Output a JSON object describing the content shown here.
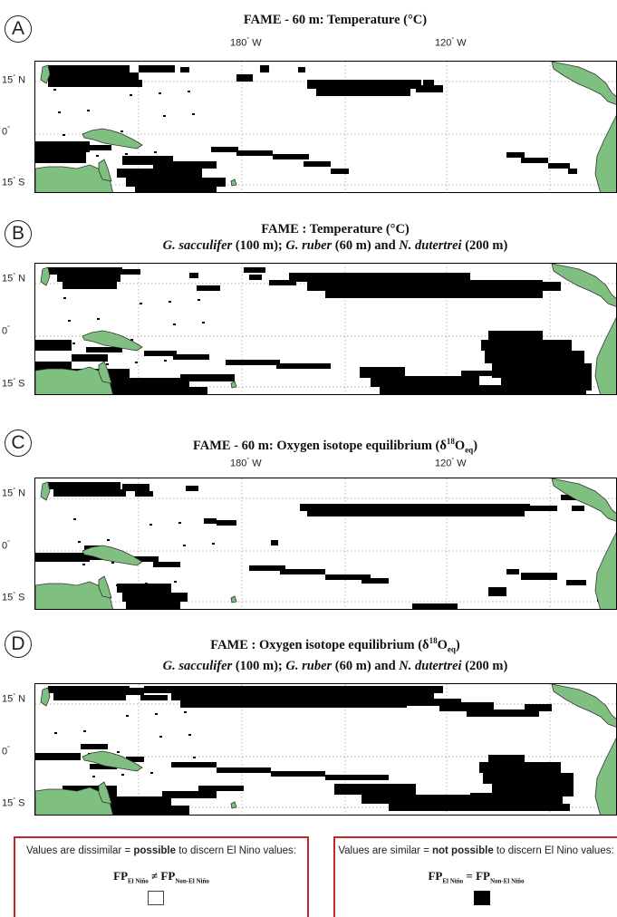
{
  "panels": [
    {
      "letter": "A",
      "title_parts": [
        {
          "text": "FAME - 60 m: Temperature (°C)",
          "style": "b"
        }
      ],
      "title_line2": [],
      "lon_labels": [
        "180",
        "120"
      ],
      "variant": 0
    },
    {
      "letter": "B",
      "title_parts": [
        {
          "text": "FAME : Temperature (°C)",
          "style": "b"
        }
      ],
      "title_line2": [
        {
          "text": "G. sacculifer",
          "style": "bi"
        },
        {
          "text": " (100 m); ",
          "style": "b"
        },
        {
          "text": "G. ruber",
          "style": "bi"
        },
        {
          "text": " (60  m) and ",
          "style": "b"
        },
        {
          "text": "N. dutertrei",
          "style": "bi"
        },
        {
          "text": " (200 m)",
          "style": "b"
        }
      ],
      "lon_labels": [],
      "variant": 1
    },
    {
      "letter": "C",
      "title_parts": [
        {
          "text": "FAME - 60 m: Oxygen isotope equilibrium (δ",
          "style": "b"
        },
        {
          "text": "18",
          "style": "sup"
        },
        {
          "text": "O",
          "style": "b"
        },
        {
          "text": "eq",
          "style": "sub"
        },
        {
          "text": ")",
          "style": "b"
        }
      ],
      "title_line2": [],
      "lon_labels": [
        "180",
        "120"
      ],
      "variant": 2
    },
    {
      "letter": "D",
      "title_parts": [
        {
          "text": "FAME : Oxygen isotope equilibrium (δ",
          "style": "b"
        },
        {
          "text": "18",
          "style": "sup"
        },
        {
          "text": "O",
          "style": "b"
        },
        {
          "text": "eq",
          "style": "sub"
        },
        {
          "text": ")",
          "style": "b"
        }
      ],
      "title_line2": [
        {
          "text": "G. sacculifer",
          "style": "bi"
        },
        {
          "text": " (100 m); ",
          "style": "b"
        },
        {
          "text": "G. ruber",
          "style": "bi"
        },
        {
          "text": " (60  m) and ",
          "style": "b"
        },
        {
          "text": "N. dutertrei",
          "style": "bi"
        },
        {
          "text": " (200 m)",
          "style": "b"
        }
      ],
      "lon_labels": [],
      "variant": 3
    }
  ],
  "lon_suffix": "W",
  "lat_labels": [
    {
      "value": "15",
      "hemi": "N"
    },
    {
      "value": "0",
      "hemi": ""
    },
    {
      "value": "15",
      "hemi": "S"
    }
  ],
  "colors": {
    "land": "#7fbf7f",
    "land_stroke": "#333333",
    "impossible": "#000000",
    "frame": "#c0282a"
  },
  "legend": {
    "left": {
      "text_before": "Values are dissimilar = ",
      "text_bold": "possible",
      "text_after": " to discern El Nino values:",
      "fp": "FP",
      "sub1": "El Niño",
      "op": "≠",
      "sub2": "Non-El Niño"
    },
    "right": {
      "text_before": "Values are similar = ",
      "text_bold": "not possible",
      "text_after": " to discern El Nino values:",
      "fp": "FP",
      "sub1": "El Niño",
      "op": "=",
      "sub2": "Non-El Niño"
    }
  }
}
